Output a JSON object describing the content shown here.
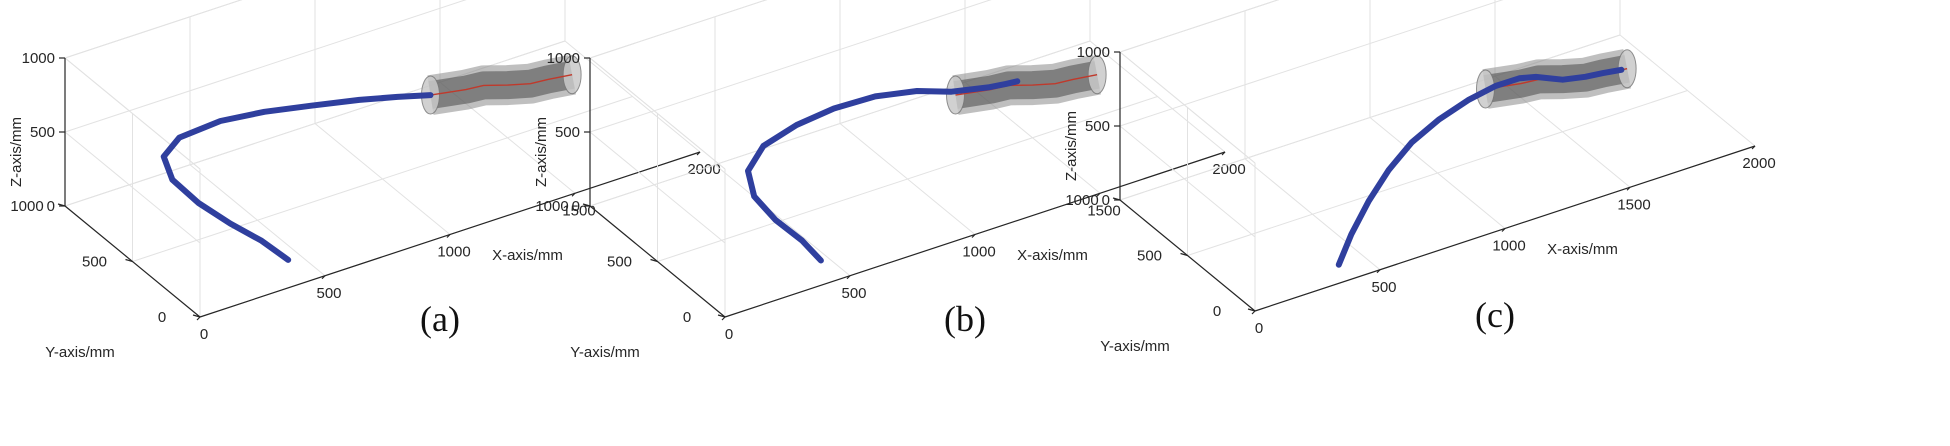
{
  "chart_data": [
    {
      "type": "line",
      "subtype": "3d",
      "panel_label": "(a)",
      "xlabel": "X-axis/mm",
      "ylabel": "Y-axis/mm",
      "zlabel": "Z-axis/mm",
      "xlim": [
        0,
        2000
      ],
      "ylim": [
        0,
        1000
      ],
      "zlim": [
        0,
        1000
      ],
      "xticks": [
        "0",
        "500",
        "1000",
        "1500",
        "2000"
      ],
      "yticks": [
        "0",
        "500",
        "1000"
      ],
      "zticks": [
        "0",
        "500",
        "1000"
      ],
      "grid": true,
      "series": [
        {
          "role": "continuum robot",
          "color": "#2f3f9e",
          "x": [
            450,
            430,
            380,
            330,
            300,
            330,
            430,
            600,
            760,
            920,
            1080,
            1200,
            1300
          ],
          "y": [
            180,
            340,
            480,
            620,
            760,
            880,
            950,
            960,
            930,
            880,
            820,
            760,
            700
          ],
          "z": [
            0,
            20,
            60,
            120,
            190,
            240,
            260,
            270,
            265,
            255,
            250,
            248,
            250
          ]
        },
        {
          "role": "pipe centerline",
          "color": "#c0392b",
          "x": [
            1300,
            1420,
            1480,
            1560,
            1640,
            1700,
            1780
          ],
          "y": [
            700,
            660,
            640,
            610,
            590,
            570,
            540
          ],
          "z": [
            250,
            250,
            260,
            240,
            220,
            230,
            240
          ]
        }
      ]
    },
    {
      "type": "line",
      "subtype": "3d",
      "panel_label": "(b)",
      "xlabel": "X-axis/mm",
      "ylabel": "Y-axis/mm",
      "zlabel": "Z-axis/mm",
      "xlim": [
        0,
        2000
      ],
      "ylim": [
        0,
        1000
      ],
      "zlim": [
        0,
        1000
      ],
      "xticks": [
        "0",
        "500",
        "1000",
        "1500",
        "2000"
      ],
      "yticks": [
        "0",
        "500",
        "1000"
      ],
      "zticks": [
        "0",
        "500",
        "1000"
      ],
      "grid": true,
      "series": [
        {
          "role": "continuum robot",
          "color": "#2f3f9e",
          "x": [
            470,
            470,
            440,
            430,
            470,
            580,
            740,
            900,
            1060,
            1200,
            1300,
            1420,
            1480,
            1520
          ],
          "y": [
            160,
            300,
            440,
            580,
            700,
            790,
            840,
            860,
            850,
            800,
            730,
            680,
            660,
            650
          ],
          "z": [
            0,
            30,
            80,
            140,
            200,
            240,
            255,
            262,
            262,
            258,
            250,
            250,
            255,
            258
          ]
        },
        {
          "role": "pipe centerline",
          "color": "#c0392b",
          "x": [
            1300,
            1420,
            1480,
            1560,
            1640,
            1700,
            1780
          ],
          "y": [
            700,
            660,
            640,
            610,
            590,
            570,
            540
          ],
          "z": [
            250,
            250,
            260,
            240,
            220,
            230,
            240
          ]
        }
      ]
    },
    {
      "type": "line",
      "subtype": "3d",
      "panel_label": "(c)",
      "xlabel": "X-axis/mm",
      "ylabel": "Y-axis/mm",
      "zlabel": "Z-axis/mm",
      "xlim": [
        0,
        2000
      ],
      "ylim": [
        0,
        1000
      ],
      "zlim": [
        0,
        1000
      ],
      "xticks": [
        "0",
        "500",
        "1000",
        "1500",
        "2000"
      ],
      "yticks": [
        "0",
        "500",
        "1000"
      ],
      "zticks": [
        "0",
        "500",
        "1000"
      ],
      "grid": true,
      "series": [
        {
          "role": "continuum robot",
          "color": "#2f3f9e",
          "x": [
            400,
            520,
            660,
            800,
            940,
            1080,
            1220,
            1340,
            1430,
            1480,
            1520,
            1560,
            1640,
            1700,
            1760
          ],
          "y": [
            120,
            250,
            380,
            490,
            580,
            640,
            680,
            700,
            690,
            660,
            630,
            610,
            590,
            570,
            545
          ],
          "z": [
            0,
            40,
            90,
            140,
            180,
            210,
            235,
            248,
            258,
            262,
            252,
            236,
            226,
            232,
            240
          ]
        },
        {
          "role": "pipe centerline",
          "color": "#c0392b",
          "x": [
            1300,
            1420,
            1480,
            1560,
            1640,
            1700,
            1780
          ],
          "y": [
            700,
            660,
            640,
            610,
            590,
            570,
            540
          ],
          "z": [
            250,
            250,
            260,
            240,
            220,
            230,
            240
          ]
        }
      ]
    }
  ]
}
